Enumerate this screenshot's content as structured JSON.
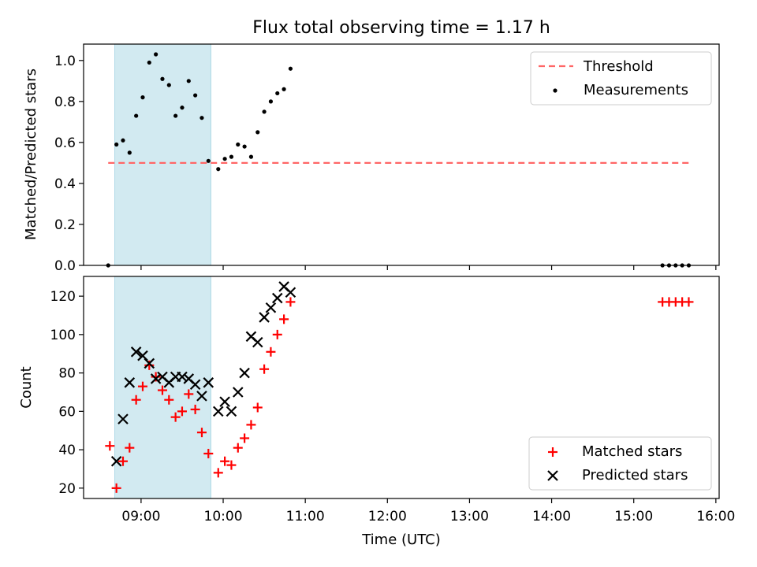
{
  "chart_data": [
    {
      "type": "scatter",
      "title": "Flux total observing time = 1.17 h",
      "ylabel": "Matched/Predicted stars",
      "ylim": [
        0,
        1.08
      ],
      "yticks": [
        0.0,
        0.2,
        0.4,
        0.6,
        0.8,
        1.0
      ],
      "ytick_labels": [
        "0.0",
        "0.2",
        "0.4",
        "0.6",
        "0.8",
        "1.0"
      ],
      "xlim_hours": [
        8.3,
        16.04
      ],
      "shaded_span_hours": [
        8.68,
        9.85
      ],
      "shade_color": "#add8e6",
      "threshold": {
        "name": "Threshold",
        "value": 0.5,
        "x_range_hours": [
          8.6,
          15.7
        ],
        "color": "#ff6666",
        "style": "dashed"
      },
      "series": [
        {
          "name": "Measurements",
          "color": "#000000",
          "marker": "dot",
          "x_hours": [
            8.6,
            8.7,
            8.78,
            8.86,
            8.94,
            9.02,
            9.1,
            9.18,
            9.26,
            9.34,
            9.42,
            9.5,
            9.58,
            9.66,
            9.74,
            9.82,
            9.94,
            10.02,
            10.1,
            10.18,
            10.26,
            10.34,
            10.42,
            10.5,
            10.58,
            10.66,
            10.74,
            10.82,
            15.35,
            15.43,
            15.51,
            15.59,
            15.67
          ],
          "y": [
            0.0,
            0.59,
            0.61,
            0.55,
            0.73,
            0.82,
            0.99,
            1.03,
            0.91,
            0.88,
            0.73,
            0.77,
            0.9,
            0.83,
            0.72,
            0.51,
            0.47,
            0.52,
            0.53,
            0.59,
            0.58,
            0.53,
            0.65,
            0.75,
            0.8,
            0.84,
            0.86,
            0.96,
            0.0,
            0.0,
            0.0,
            0.0,
            0.0
          ]
        }
      ],
      "legend_position": "top-right"
    },
    {
      "type": "scatter",
      "xlabel": "Time (UTC)",
      "ylabel": "Count",
      "ylim": [
        14.6,
        130.3
      ],
      "yticks": [
        20,
        40,
        60,
        80,
        100,
        120
      ],
      "ytick_labels": [
        "20",
        "40",
        "60",
        "80",
        "100",
        "120"
      ],
      "xlim_hours": [
        8.3,
        16.04
      ],
      "xticks_hours": [
        9,
        10,
        11,
        12,
        13,
        14,
        15,
        16
      ],
      "xtick_labels": [
        "09:00",
        "10:00",
        "11:00",
        "12:00",
        "13:00",
        "14:00",
        "15:00",
        "16:00"
      ],
      "shaded_span_hours": [
        8.68,
        9.85
      ],
      "shade_color": "#add8e6",
      "series": [
        {
          "name": "Matched stars",
          "color": "#ff0000",
          "marker": "plus",
          "x_hours": [
            8.62,
            8.7,
            8.78,
            8.86,
            8.94,
            9.02,
            9.1,
            9.18,
            9.26,
            9.34,
            9.42,
            9.5,
            9.58,
            9.66,
            9.74,
            9.82,
            9.94,
            10.02,
            10.1,
            10.18,
            10.26,
            10.34,
            10.42,
            10.5,
            10.58,
            10.66,
            10.74,
            10.82,
            15.35,
            15.43,
            15.51,
            15.59,
            15.67
          ],
          "y": [
            42,
            20,
            34,
            41,
            66,
            73,
            84,
            78,
            71,
            66,
            57,
            60,
            69,
            61,
            49,
            38,
            28,
            34,
            32,
            41,
            46,
            53,
            62,
            82,
            91,
            100,
            108,
            117,
            117,
            117,
            117,
            117,
            117
          ]
        },
        {
          "name": "Predicted stars",
          "color": "#000000",
          "marker": "x",
          "x_hours": [
            8.7,
            8.78,
            8.86,
            8.94,
            9.02,
            9.1,
            9.18,
            9.26,
            9.34,
            9.42,
            9.5,
            9.58,
            9.66,
            9.74,
            9.82,
            9.94,
            10.02,
            10.1,
            10.18,
            10.26,
            10.34,
            10.42,
            10.5,
            10.58,
            10.66,
            10.74,
            10.82
          ],
          "y": [
            34,
            56,
            75,
            91,
            89,
            85,
            77,
            78,
            75,
            78,
            78,
            77,
            74,
            68,
            75,
            60,
            65,
            60,
            70,
            80,
            99,
            96,
            109,
            114,
            119,
            125,
            122
          ]
        }
      ],
      "legend_position": "bottom-right"
    }
  ]
}
